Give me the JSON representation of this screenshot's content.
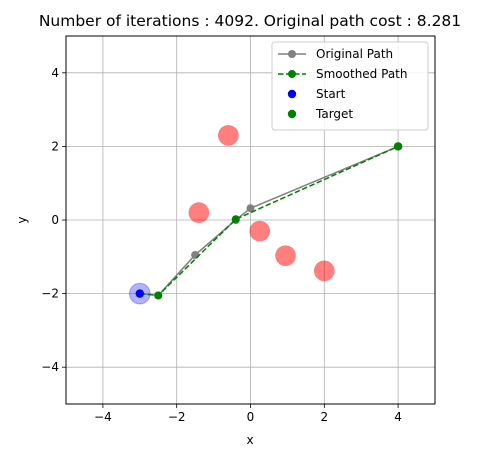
{
  "chart_data": {
    "type": "line",
    "title": "Number of iterations : 4092.  Original path cost : 8.281",
    "xlabel": "x",
    "ylabel": "y",
    "xlim": [
      -5,
      5
    ],
    "ylim": [
      -5,
      5
    ],
    "xticks": [
      -4,
      -2,
      0,
      2,
      4
    ],
    "yticks": [
      -4,
      -2,
      0,
      2,
      4
    ],
    "xtick_labels": [
      "−4",
      "−2",
      "0",
      "2",
      "4"
    ],
    "ytick_labels": [
      "−4",
      "−2",
      "0",
      "2",
      "4"
    ],
    "grid": true,
    "legend_position": "top-right",
    "obstacles": [
      {
        "x": -0.6,
        "y": 2.3,
        "r": 0.28
      },
      {
        "x": -1.4,
        "y": 0.2,
        "r": 0.28
      },
      {
        "x": 0.25,
        "y": -0.3,
        "r": 0.28
      },
      {
        "x": 0.95,
        "y": -0.97,
        "r": 0.28
      },
      {
        "x": 2.0,
        "y": -1.38,
        "r": 0.28
      }
    ],
    "obstacle_color": "#ff0000",
    "start_marker_halo": {
      "x": -3.0,
      "y": -2.0,
      "r": 0.28,
      "color": "#0000ff"
    },
    "series": [
      {
        "name": "Original Path",
        "color": "#808080",
        "linestyle": "solid",
        "x": [
          -3.0,
          -2.5,
          -1.5,
          -0.4,
          0.0,
          4.0
        ],
        "y": [
          -2.0,
          -2.05,
          -0.95,
          0.0,
          0.32,
          2.0
        ]
      },
      {
        "name": "Smoothed Path",
        "color": "#008000",
        "linestyle": "dashed",
        "x": [
          -3.0,
          -2.5,
          -0.4,
          4.0
        ],
        "y": [
          -2.0,
          -2.05,
          0.02,
          2.0
        ]
      },
      {
        "name": "Start",
        "color": "#0000ff",
        "type": "scatter",
        "x": [
          -3.0
        ],
        "y": [
          -2.0
        ]
      },
      {
        "name": "Target",
        "color": "#008000",
        "type": "scatter",
        "x": [
          4.0
        ],
        "y": [
          2.0
        ]
      }
    ]
  }
}
